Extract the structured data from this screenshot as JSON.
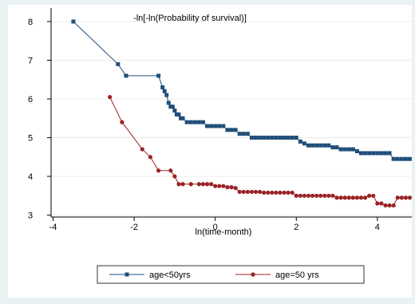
{
  "chart_data": {
    "type": "line",
    "title": "-ln[-ln(Probability of survival)]",
    "xlabel": "ln(time-month)",
    "ylabel": "",
    "xlim": [
      -4.05,
      4.85
    ],
    "ylim": [
      2.95,
      8.35
    ],
    "xticks": [
      -4,
      -2,
      0,
      2,
      4
    ],
    "yticks": [
      3,
      4,
      5,
      6,
      7,
      8
    ],
    "grid": "horizontal",
    "legend_position": "bottom",
    "series": [
      {
        "name": "age<50yrs",
        "color": "#1f4e79",
        "marker": "square",
        "x": [
          -3.5,
          -2.4,
          -2.2,
          -1.4,
          -1.3,
          -1.25,
          -1.2,
          -1.15,
          -1.1,
          -1.05,
          -1.0,
          -0.95,
          -0.9,
          -0.85,
          -0.8,
          -0.7,
          -0.6,
          -0.5,
          -0.4,
          -0.3,
          -0.2,
          -0.1,
          0.0,
          0.1,
          0.2,
          0.3,
          0.4,
          0.5,
          0.6,
          0.7,
          0.8,
          0.9,
          1.0,
          1.1,
          1.2,
          1.3,
          1.4,
          1.5,
          1.6,
          1.7,
          1.8,
          1.9,
          2.0,
          2.1,
          2.2,
          2.3,
          2.4,
          2.5,
          2.6,
          2.7,
          2.8,
          2.9,
          3.0,
          3.1,
          3.2,
          3.3,
          3.4,
          3.5,
          3.6,
          3.7,
          3.8,
          3.9,
          4.0,
          4.1,
          4.2,
          4.3,
          4.4,
          4.5,
          4.6,
          4.7,
          4.8
        ],
        "y": [
          8.0,
          6.9,
          6.6,
          6.6,
          6.3,
          6.2,
          6.1,
          5.9,
          5.8,
          5.8,
          5.7,
          5.6,
          5.6,
          5.5,
          5.5,
          5.4,
          5.4,
          5.4,
          5.4,
          5.4,
          5.3,
          5.3,
          5.3,
          5.3,
          5.3,
          5.2,
          5.2,
          5.2,
          5.1,
          5.1,
          5.1,
          5.0,
          5.0,
          5.0,
          5.0,
          5.0,
          5.0,
          5.0,
          5.0,
          5.0,
          5.0,
          5.0,
          5.0,
          4.9,
          4.85,
          4.8,
          4.8,
          4.8,
          4.8,
          4.8,
          4.8,
          4.75,
          4.75,
          4.7,
          4.7,
          4.7,
          4.7,
          4.65,
          4.6,
          4.6,
          4.6,
          4.6,
          4.6,
          4.6,
          4.6,
          4.6,
          4.45,
          4.45,
          4.45,
          4.45,
          4.45
        ]
      },
      {
        "name": "age=50 yrs",
        "color": "#9b2226",
        "marker": "circle",
        "x": [
          -2.6,
          -2.3,
          -1.8,
          -1.6,
          -1.4,
          -1.1,
          -1.0,
          -0.9,
          -0.8,
          -0.6,
          -0.4,
          -0.3,
          -0.2,
          -0.1,
          0.0,
          0.1,
          0.2,
          0.3,
          0.4,
          0.5,
          0.6,
          0.7,
          0.8,
          0.9,
          1.0,
          1.1,
          1.2,
          1.3,
          1.4,
          1.5,
          1.6,
          1.7,
          1.8,
          1.9,
          2.0,
          2.1,
          2.2,
          2.3,
          2.4,
          2.5,
          2.6,
          2.7,
          2.8,
          2.9,
          3.0,
          3.1,
          3.2,
          3.3,
          3.4,
          3.5,
          3.6,
          3.7,
          3.8,
          3.9,
          4.0,
          4.1,
          4.2,
          4.3,
          4.4,
          4.5,
          4.6,
          4.7,
          4.8
        ],
        "y": [
          6.05,
          5.4,
          4.7,
          4.5,
          4.15,
          4.15,
          4.0,
          3.8,
          3.8,
          3.8,
          3.8,
          3.8,
          3.8,
          3.8,
          3.75,
          3.75,
          3.75,
          3.72,
          3.72,
          3.7,
          3.6,
          3.6,
          3.6,
          3.6,
          3.6,
          3.6,
          3.58,
          3.58,
          3.58,
          3.58,
          3.58,
          3.58,
          3.58,
          3.58,
          3.5,
          3.5,
          3.5,
          3.5,
          3.5,
          3.5,
          3.5,
          3.5,
          3.5,
          3.5,
          3.45,
          3.45,
          3.45,
          3.45,
          3.45,
          3.45,
          3.45,
          3.45,
          3.5,
          3.5,
          3.3,
          3.3,
          3.25,
          3.25,
          3.25,
          3.45,
          3.45,
          3.45,
          3.45
        ]
      }
    ]
  }
}
